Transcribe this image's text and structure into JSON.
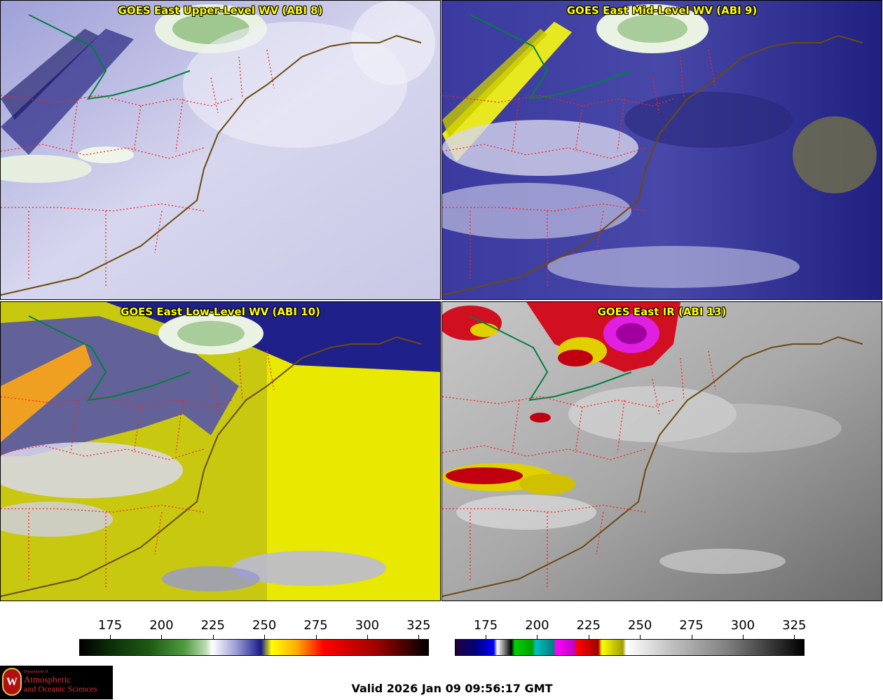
{
  "panels": [
    {
      "title": "GOES East Upper-Level WV (ABI 8)",
      "product": "upper-wv"
    },
    {
      "title": "GOES East Mid-Level WV (ABI 9)",
      "product": "mid-wv"
    },
    {
      "title": "GOES East Low-Level WV (ABI 10)",
      "product": "low-wv"
    },
    {
      "title": "GOES East IR (ABI 13)",
      "product": "ir"
    }
  ],
  "colorbars": [
    {
      "name": "water-vapor",
      "ticks": [
        "175",
        "200",
        "225",
        "250",
        "275",
        "300",
        "325"
      ],
      "min": 160,
      "max": 330
    },
    {
      "name": "infrared",
      "ticks": [
        "175",
        "200",
        "225",
        "250",
        "275",
        "300",
        "325"
      ],
      "min": 160,
      "max": 330
    }
  ],
  "footer": {
    "valid": "Valid 2026 Jan 09 09:56:17 GMT",
    "logo_dept": "Department of",
    "logo_line1": "Atmospheric",
    "logo_line2": "and Oceanic Sciences",
    "logo_seal": "W"
  },
  "colors": {
    "title_text": "#ffff00",
    "state_borders": "#ff2020",
    "coastline": "#6b4a10",
    "lake_outline": "#008040"
  }
}
